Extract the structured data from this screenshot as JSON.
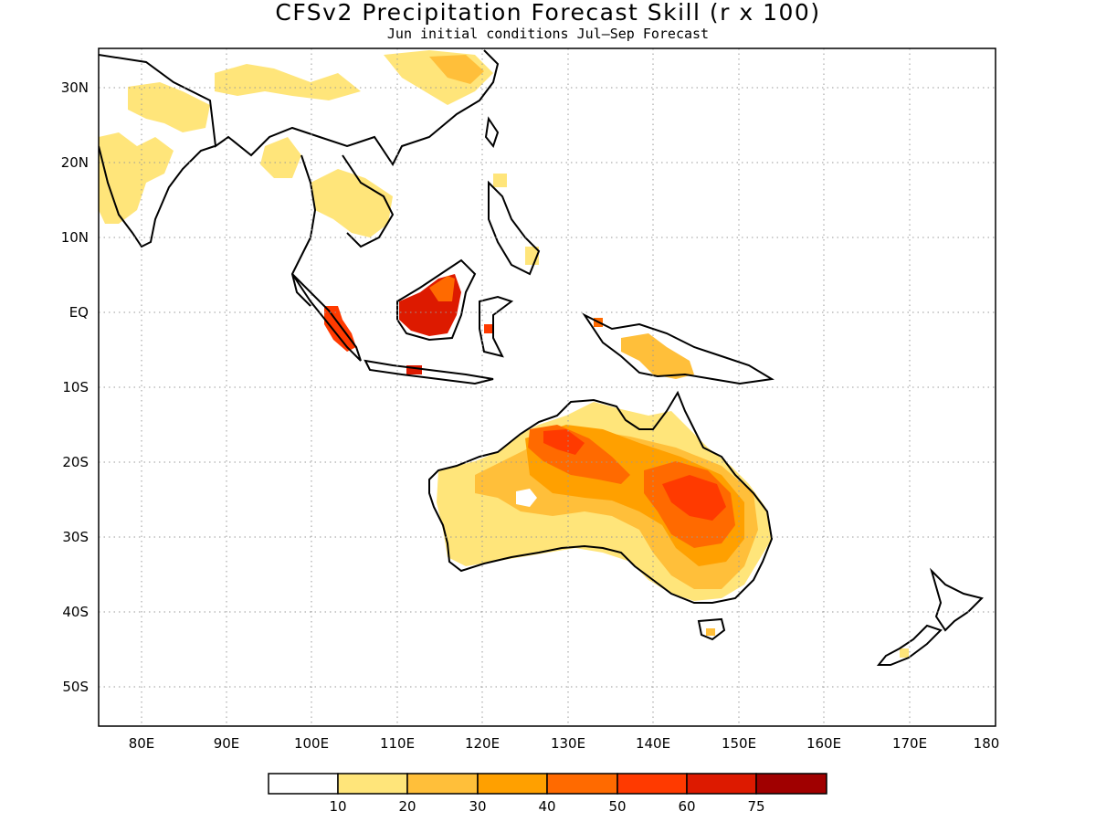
{
  "title": "CFSv2 Precipitation Forecast Skill (r x 100)",
  "subtitle": "Jun initial conditions  Jul—Sep Forecast",
  "lat_labels": [
    "30N",
    "20N",
    "10N",
    "EQ",
    "10S",
    "20S",
    "30S",
    "40S",
    "50S"
  ],
  "lon_labels": [
    "80E",
    "90E",
    "100E",
    "110E",
    "120E",
    "130E",
    "140E",
    "150E",
    "160E",
    "170E",
    "180"
  ],
  "extent": {
    "lon": [
      75,
      180
    ],
    "lat": [
      -55,
      35
    ]
  },
  "grid": "dotted",
  "colorbar": {
    "labels": [
      "10",
      "20",
      "30",
      "40",
      "50",
      "60",
      "75"
    ],
    "colors": [
      "#ffffff",
      "#ffe57a",
      "#ffbf3a",
      "#ffa000",
      "#ff6a00",
      "#ff3a00",
      "#dd1a00",
      "#a00000"
    ]
  }
}
